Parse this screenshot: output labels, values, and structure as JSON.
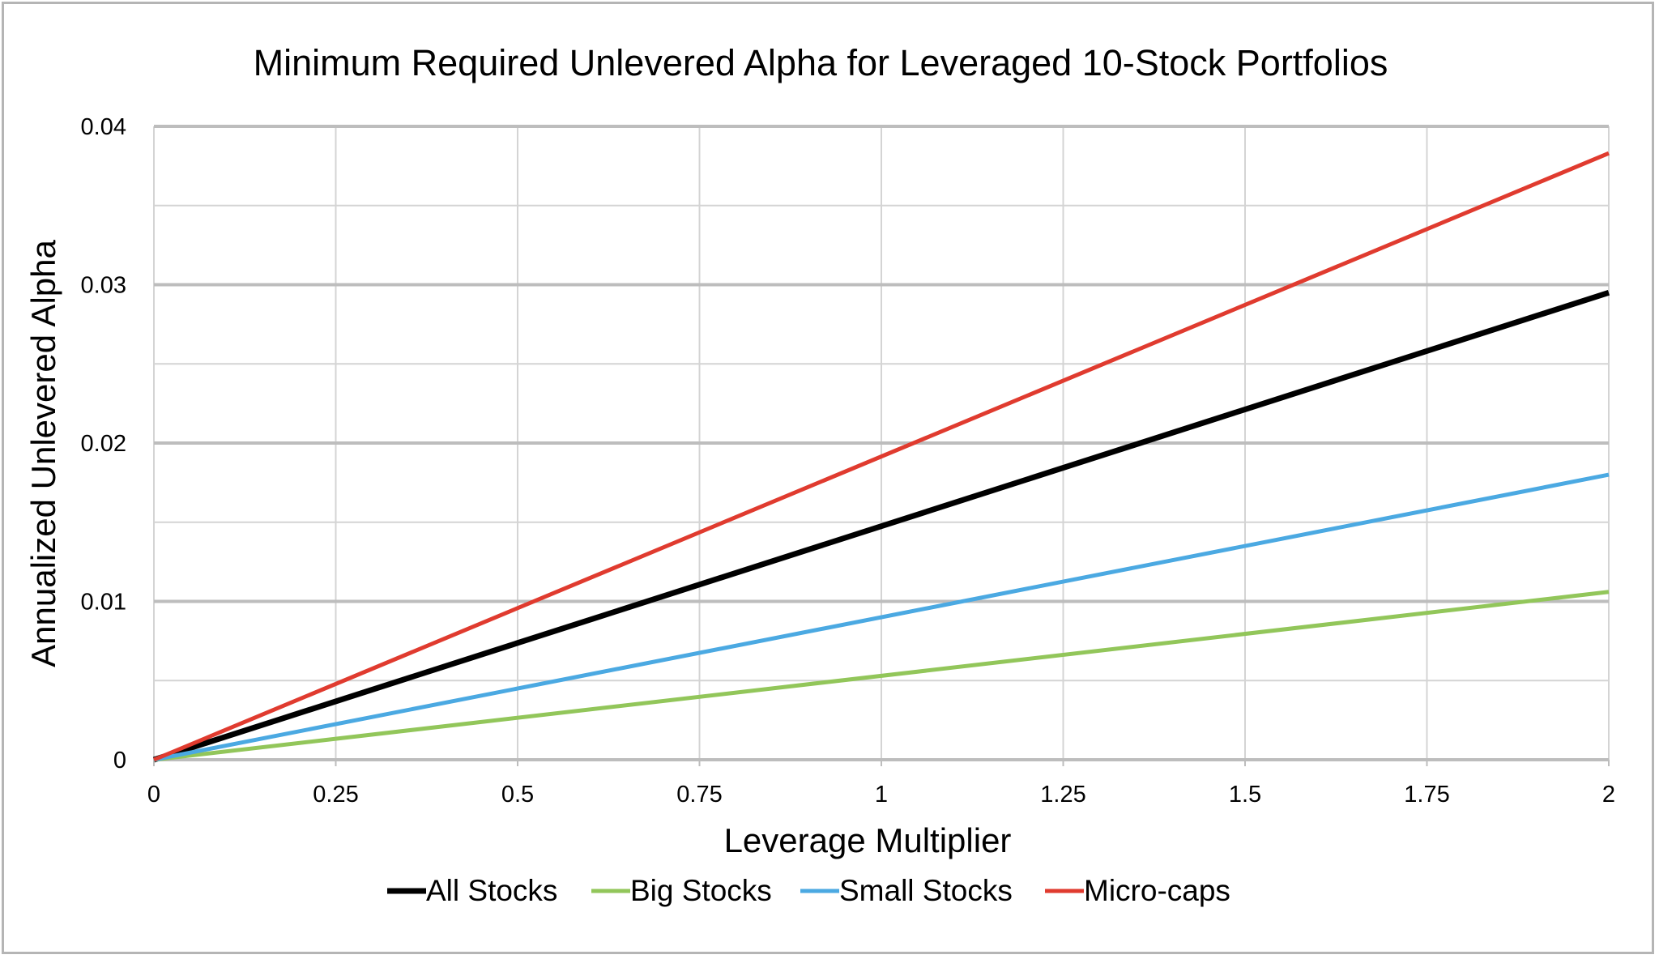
{
  "chart_data": {
    "type": "line",
    "title": "Minimum Required Unlevered Alpha for Leveraged 10-Stock Portfolios",
    "xlabel": "Leverage Multiplier",
    "ylabel": "Annualized Unlevered Alpha",
    "xlim": [
      0,
      2
    ],
    "ylim": [
      0,
      0.04
    ],
    "x_ticks": [
      "0",
      "0.25",
      "0.5",
      "0.75",
      "1",
      "1.25",
      "1.5",
      "1.75",
      "2"
    ],
    "y_ticks": [
      "0",
      "0.01",
      "0.02",
      "0.03",
      "0.04"
    ],
    "grid": true,
    "legend_position": "bottom",
    "series": [
      {
        "name": "All Stocks",
        "color": "#000000",
        "x": [
          0,
          2
        ],
        "y": [
          0,
          0.0295
        ]
      },
      {
        "name": "Big Stocks",
        "color": "#92c65a",
        "x": [
          0,
          2
        ],
        "y": [
          0,
          0.0106
        ]
      },
      {
        "name": "Small Stocks",
        "color": "#4ba9e2",
        "x": [
          0,
          2
        ],
        "y": [
          0,
          0.018
        ]
      },
      {
        "name": "Micro-caps",
        "color": "#e03b2f",
        "x": [
          0,
          2
        ],
        "y": [
          0,
          0.0383
        ]
      }
    ]
  }
}
